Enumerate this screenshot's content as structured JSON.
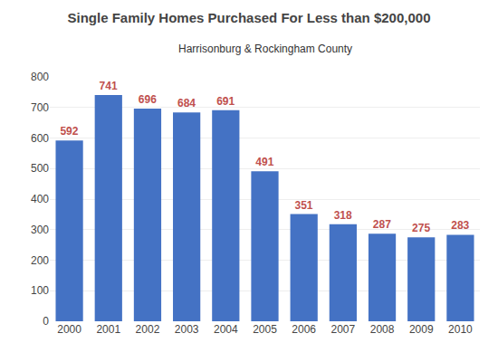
{
  "chart_data": {
    "type": "bar",
    "title": "Single Family Homes Purchased For Less than $200,000",
    "subtitle": "Harrisonburg & Rockingham County",
    "categories": [
      "2000",
      "2001",
      "2002",
      "2003",
      "2004",
      "2005",
      "2006",
      "2007",
      "2008",
      "2009",
      "2010"
    ],
    "values": [
      592,
      741,
      696,
      684,
      691,
      491,
      351,
      318,
      287,
      275,
      283
    ],
    "color": "#4472C4",
    "ylim": [
      0,
      800
    ],
    "yticks": [
      0,
      100,
      200,
      300,
      400,
      500,
      600,
      700,
      800
    ],
    "grid": true,
    "data_labels": true
  }
}
